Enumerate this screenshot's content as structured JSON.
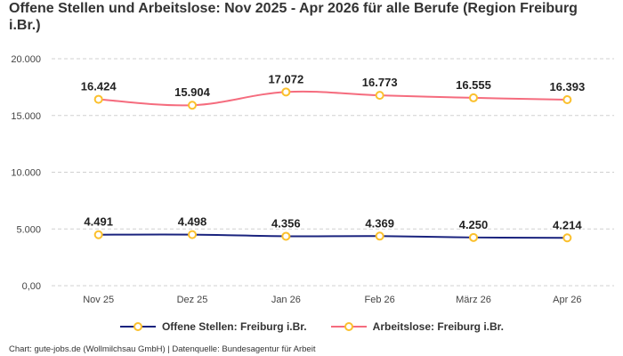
{
  "chart_data": {
    "type": "line",
    "title": "Offene Stellen und Arbeitslose: Nov 2025 - Apr 2026 für alle Berufe (Region Freiburg i.Br.)",
    "categories": [
      "Nov 25",
      "Dez 25",
      "Jan 26",
      "Feb 26",
      "März 26",
      "Apr 26"
    ],
    "ylim": [
      0,
      20000
    ],
    "yticks": [
      0,
      5000,
      10000,
      15000,
      20000
    ],
    "ytick_labels": [
      "0,00",
      "5.000",
      "10.000",
      "15.000",
      "20.000"
    ],
    "xlabel": "",
    "ylabel": "",
    "grid": true,
    "legend_position": "bottom-center",
    "series": [
      {
        "name": "Offene Stellen: Freiburg i.Br.",
        "values": [
          4491,
          4498,
          4356,
          4369,
          4250,
          4214
        ],
        "labels": [
          "4.491",
          "4.498",
          "4.356",
          "4.369",
          "4.250",
          "4.214"
        ],
        "color": "#1a237e"
      },
      {
        "name": "Arbeitslose: Freiburg i.Br.",
        "values": [
          16424,
          15904,
          17072,
          16773,
          16555,
          16393
        ],
        "labels": [
          "16.424",
          "15.904",
          "17.072",
          "16.773",
          "16.555",
          "16.393"
        ],
        "color": "#f56c7e"
      }
    ],
    "marker_color": "#fbc02d"
  },
  "credits": "Chart: gute-jobs.de (Wollmilchsau GmbH) | Datenquelle: Bundesagentur für Arbeit"
}
